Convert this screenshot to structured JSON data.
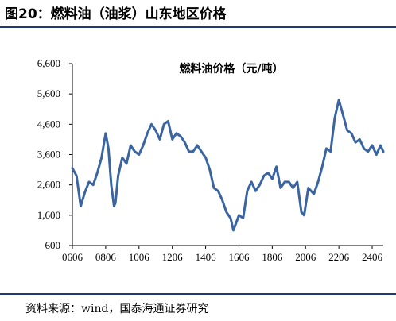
{
  "figure": {
    "title": "图20：燃料油（油浆）山东地区价格",
    "source": "资料来源：wind，国泰海通证券研究"
  },
  "colors": {
    "line": "#3a65a0",
    "axis": "#000000",
    "rule": "#1f3b6e"
  },
  "chart_data": {
    "type": "line",
    "title": "燃料油价格（元/吨）",
    "xlabel": "",
    "ylabel": "",
    "ylim": [
      600,
      6600
    ],
    "yticks": [
      "6,600",
      "5,600",
      "4,600",
      "3,600",
      "2,600",
      "1,600",
      "600"
    ],
    "ytick_values": [
      6600,
      5600,
      4600,
      3600,
      2600,
      1600,
      600
    ],
    "xticks": [
      "0606",
      "0806",
      "1006",
      "1206",
      "1406",
      "1606",
      "1806",
      "2006",
      "2206",
      "2406"
    ],
    "grid": false,
    "x_range": [
      "2006-06",
      "2025-02"
    ],
    "series": [
      {
        "x": [
          "2006-06",
          "2006-09",
          "2006-12",
          "2007-03",
          "2007-06",
          "2007-09",
          "2007-12",
          "2008-03",
          "2008-06",
          "2008-08",
          "2008-10",
          "2008-12",
          "2009-01",
          "2009-03",
          "2009-06",
          "2009-09",
          "2009-12",
          "2010-03",
          "2010-06",
          "2010-09",
          "2010-12",
          "2011-03",
          "2011-06",
          "2011-09",
          "2011-12",
          "2012-03",
          "2012-06",
          "2012-09",
          "2012-12",
          "2013-03",
          "2013-06",
          "2013-09",
          "2013-12",
          "2014-03",
          "2014-06",
          "2014-09",
          "2014-12",
          "2015-03",
          "2015-06",
          "2015-09",
          "2015-12",
          "2016-02",
          "2016-06",
          "2016-09",
          "2016-12",
          "2017-03",
          "2017-06",
          "2017-09",
          "2017-12",
          "2018-03",
          "2018-06",
          "2018-09",
          "2018-12",
          "2019-03",
          "2019-06",
          "2019-09",
          "2019-12",
          "2020-03",
          "2020-05",
          "2020-08",
          "2020-12",
          "2021-03",
          "2021-06",
          "2021-09",
          "2021-12",
          "2022-03",
          "2022-06",
          "2022-09",
          "2022-12",
          "2023-03",
          "2023-06",
          "2023-09",
          "2023-12",
          "2024-03",
          "2024-06",
          "2024-09",
          "2024-12",
          "2025-02"
        ],
        "values": [
          3150,
          2900,
          1900,
          2350,
          2700,
          2600,
          3000,
          3500,
          4300,
          3800,
          2600,
          1900,
          2000,
          2900,
          3500,
          3300,
          3900,
          3700,
          3600,
          3900,
          4300,
          4600,
          4400,
          4100,
          4600,
          4700,
          4100,
          4300,
          4200,
          4000,
          3700,
          3700,
          3900,
          3700,
          3500,
          3100,
          2500,
          2400,
          2100,
          1700,
          1500,
          1100,
          1600,
          1500,
          2400,
          2700,
          2400,
          2600,
          2900,
          3000,
          2800,
          3200,
          2500,
          2700,
          2700,
          2500,
          2700,
          1700,
          1600,
          2500,
          2300,
          2700,
          3200,
          3800,
          3700,
          4800,
          5400,
          4900,
          4400,
          4300,
          4000,
          4100,
          3800,
          3700,
          3900,
          3600,
          3900,
          3700
        ]
      }
    ]
  }
}
